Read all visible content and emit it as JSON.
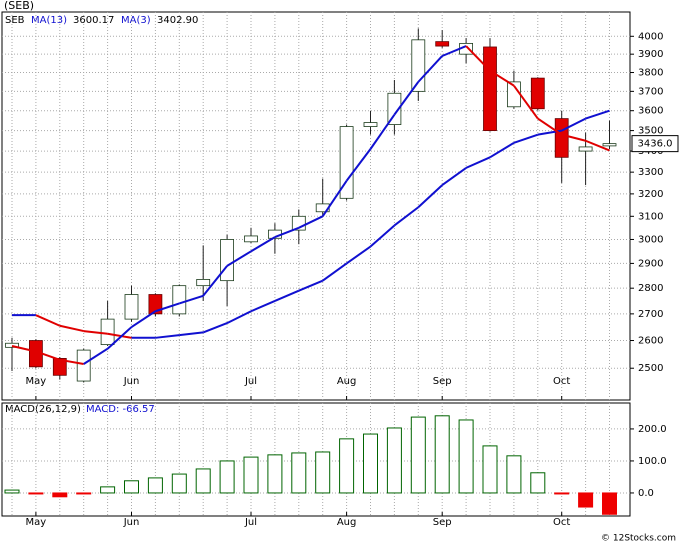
{
  "chart_data": [
    {
      "type": "candlestick",
      "title": "(SEB)",
      "log": true,
      "grid": true,
      "categories": [
        null,
        "May",
        null,
        null,
        null,
        "Jun",
        null,
        null,
        null,
        null,
        "Jul",
        null,
        null,
        null,
        "Aug",
        null,
        null,
        null,
        "Sep",
        null,
        null,
        null,
        null,
        "Oct",
        null,
        null
      ],
      "open": [
        2575,
        2600,
        2535,
        2455,
        2585,
        2680,
        2775,
        2700,
        2810,
        2830,
        2990,
        3005,
        3040,
        3120,
        3180,
        3520,
        3530,
        3700,
        3970,
        3900,
        3940,
        3620,
        3770,
        3560,
        3400,
        3425
      ],
      "high": [
        2610,
        2605,
        2540,
        2570,
        2750,
        2810,
        2780,
        2815,
        2975,
        3020,
        3050,
        3070,
        3130,
        3270,
        3530,
        3600,
        3760,
        4045,
        4035,
        3990,
        3990,
        3810,
        3775,
        3600,
        3490,
        3550
      ],
      "low": [
        2490,
        2500,
        2460,
        2450,
        2580,
        2670,
        2690,
        2690,
        2750,
        2730,
        2985,
        2940,
        2980,
        3100,
        3170,
        3480,
        3480,
        3650,
        3935,
        3850,
        3495,
        3610,
        3600,
        3250,
        3240,
        3410
      ],
      "close": [
        2590,
        2505,
        2475,
        2565,
        2680,
        2775,
        2700,
        2810,
        2835,
        3000,
        3015,
        3040,
        3100,
        3155,
        3520,
        3540,
        3690,
        3980,
        3945,
        3960,
        3500,
        3750,
        3610,
        3370,
        3420,
        3436
      ],
      "up_color": "#ffffff",
      "down_color": "#e00000",
      "line_up_color": "#1010d0",
      "line_down_color": "#e00000",
      "last_label": "3436.0",
      "ylim": [
        2390,
        4140
      ],
      "yticks": [
        2500,
        2600,
        2700,
        2800,
        2900,
        3000,
        3100,
        3200,
        3300,
        3400,
        3500,
        3600,
        3700,
        3800,
        3900,
        4000
      ],
      "legend_prefix": "SEB",
      "series": [
        {
          "name": "MA(13)",
          "color": "#1010d0",
          "value_label": "3600.17",
          "values": [
            2695,
            2695,
            2655,
            2635,
            2625,
            2610,
            2610,
            2620,
            2630,
            2665,
            2710,
            2750,
            2790,
            2830,
            2900,
            2970,
            3060,
            3140,
            3240,
            3320,
            3370,
            3440,
            3480,
            3500,
            3560,
            3600.17
          ]
        },
        {
          "name": "MA(3)",
          "color": "#1010d0",
          "value_label": "3402.90",
          "values": [
            2580,
            2560,
            2530,
            2515,
            2570,
            2650,
            2710,
            2740,
            2770,
            2890,
            2950,
            3010,
            3050,
            3100,
            3260,
            3410,
            3580,
            3750,
            3890,
            3945,
            3810,
            3730,
            3560,
            3480,
            3450,
            3402.9
          ]
        }
      ]
    },
    {
      "type": "bar",
      "title": "MACD(26,12,9)",
      "value_label": "MACD: -66.57",
      "label_color": "#1010d0",
      "grid": true,
      "categories": [
        null,
        "May",
        null,
        null,
        null,
        "Jun",
        null,
        null,
        null,
        null,
        "Jul",
        null,
        null,
        null,
        "Aug",
        null,
        null,
        null,
        "Sep",
        null,
        null,
        null,
        null,
        "Oct",
        null,
        null
      ],
      "values": [
        9,
        -1,
        -12,
        -3,
        19,
        38,
        47,
        59,
        75,
        100,
        112,
        119,
        125,
        128,
        169,
        184,
        203,
        237,
        241,
        228,
        147,
        116,
        63,
        -2,
        -44,
        -66.57
      ],
      "up_color": "#006400",
      "down_color": "#ee0000",
      "ylim": [
        -72,
        281
      ],
      "yticks": [
        {
          "value": 0,
          "label": "0.0"
        },
        {
          "value": 100,
          "label": "100.0"
        },
        {
          "value": 200,
          "label": "200.0"
        }
      ]
    }
  ],
  "footer": "© 12Stocks.com"
}
